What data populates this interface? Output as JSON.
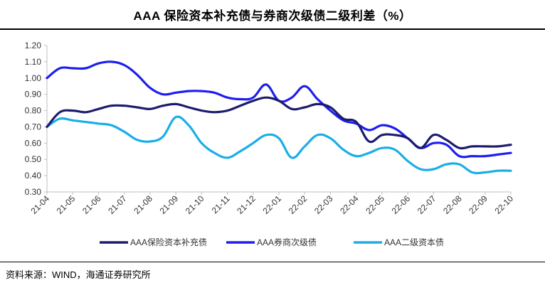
{
  "chart_data": {
    "type": "line",
    "title": "AAA 保险资本补充债与券商次级债二级利差（%）",
    "ylim": [
      0.3,
      1.2
    ],
    "yticks": [
      "0.30",
      "0.40",
      "0.50",
      "0.60",
      "0.70",
      "0.80",
      "0.90",
      "1.00",
      "1.10",
      "1.20"
    ],
    "categories": [
      "21-04",
      "21-05",
      "21-06",
      "21-07",
      "21-08",
      "21-09",
      "21-10",
      "21-11",
      "21-12",
      "22-01",
      "22-02",
      "22-03",
      "22-04",
      "22-05",
      "22-06",
      "22-07",
      "22-08",
      "22-09",
      "22-10"
    ],
    "series": [
      {
        "name": "AAA保险资本补充债",
        "color": "#1c1c6e",
        "x": [
          0,
          0.5,
          1,
          1.5,
          2,
          2.5,
          3,
          3.5,
          4,
          4.5,
          5,
          5.5,
          6,
          6.5,
          7,
          7.5,
          8,
          8.5,
          9,
          9.5,
          10,
          10.5,
          11,
          11.5,
          12,
          12.5,
          13,
          13.5,
          14,
          14.5,
          15,
          15.5,
          16,
          16.5,
          17,
          17.5,
          18
        ],
        "values": [
          0.7,
          0.79,
          0.8,
          0.79,
          0.81,
          0.83,
          0.83,
          0.82,
          0.81,
          0.83,
          0.84,
          0.82,
          0.8,
          0.79,
          0.8,
          0.83,
          0.86,
          0.88,
          0.86,
          0.81,
          0.82,
          0.84,
          0.82,
          0.75,
          0.73,
          0.61,
          0.65,
          0.65,
          0.63,
          0.57,
          0.65,
          0.62,
          0.57,
          0.58,
          0.58,
          0.58,
          0.59
        ]
      },
      {
        "name": "AAA券商次级债",
        "color": "#1e1ef0",
        "x": [
          0,
          0.5,
          1,
          1.5,
          2,
          2.5,
          3,
          3.5,
          4,
          4.5,
          5,
          5.5,
          6,
          6.5,
          7,
          7.5,
          8,
          8.5,
          9,
          9.5,
          10,
          10.5,
          11,
          11.5,
          12,
          12.5,
          13,
          13.5,
          14,
          14.5,
          15,
          15.5,
          16,
          16.5,
          17,
          17.5,
          18
        ],
        "values": [
          1.0,
          1.06,
          1.06,
          1.06,
          1.09,
          1.1,
          1.08,
          1.02,
          0.94,
          0.9,
          0.91,
          0.92,
          0.92,
          0.91,
          0.88,
          0.87,
          0.88,
          0.96,
          0.86,
          0.88,
          0.95,
          0.87,
          0.8,
          0.74,
          0.72,
          0.68,
          0.71,
          0.69,
          0.63,
          0.57,
          0.6,
          0.59,
          0.52,
          0.52,
          0.52,
          0.53,
          0.54
        ]
      },
      {
        "name": "AAA二级资本债",
        "color": "#1aaee8",
        "x": [
          0,
          0.5,
          1,
          1.5,
          2,
          2.5,
          3,
          3.5,
          4,
          4.5,
          5,
          5.5,
          6,
          6.5,
          7,
          7.5,
          8,
          8.5,
          9,
          9.5,
          10,
          10.5,
          11,
          11.5,
          12,
          12.5,
          13,
          13.5,
          14,
          14.5,
          15,
          15.5,
          16,
          16.5,
          17,
          17.5,
          18
        ],
        "values": [
          0.7,
          0.75,
          0.74,
          0.73,
          0.72,
          0.71,
          0.67,
          0.62,
          0.61,
          0.64,
          0.76,
          0.71,
          0.6,
          0.54,
          0.51,
          0.55,
          0.6,
          0.65,
          0.63,
          0.51,
          0.58,
          0.65,
          0.63,
          0.56,
          0.52,
          0.54,
          0.57,
          0.56,
          0.49,
          0.44,
          0.44,
          0.47,
          0.47,
          0.42,
          0.42,
          0.43,
          0.43
        ]
      }
    ]
  },
  "source": "资料来源：WIND，海通证券研究所"
}
